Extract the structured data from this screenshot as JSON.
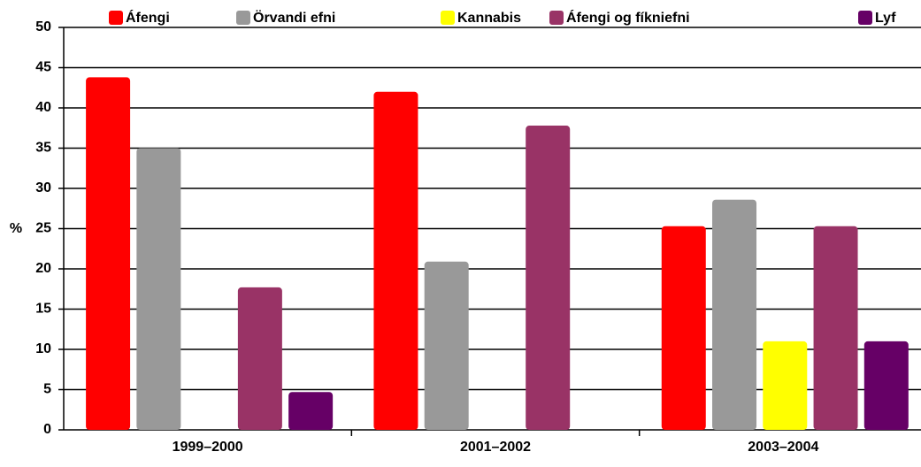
{
  "chart_data": {
    "type": "bar",
    "ylabel": "%",
    "categories": [
      "1999–2000",
      "2001–2002",
      "2003–2004"
    ],
    "series": [
      {
        "name": "Áfengi",
        "color": "#ff0000",
        "values": [
          43.8,
          42,
          25.3
        ]
      },
      {
        "name": "Örvandi efni",
        "color": "#999999",
        "values": [
          35,
          20.9,
          28.6
        ]
      },
      {
        "name": "Kannabis",
        "color": "#ffff00",
        "values": [
          null,
          null,
          11
        ]
      },
      {
        "name": "Áfengi og fíkniefni",
        "color": "#993366",
        "values": [
          17.7,
          37.8,
          25.3
        ]
      },
      {
        "name": "Lyf",
        "color": "#660066",
        "values": [
          4.7,
          null,
          11
        ]
      }
    ],
    "ylim": [
      0,
      50
    ],
    "yticks": [
      0,
      5,
      10,
      15,
      20,
      25,
      30,
      35,
      40,
      45,
      50
    ],
    "grid": true,
    "legend": "top"
  }
}
